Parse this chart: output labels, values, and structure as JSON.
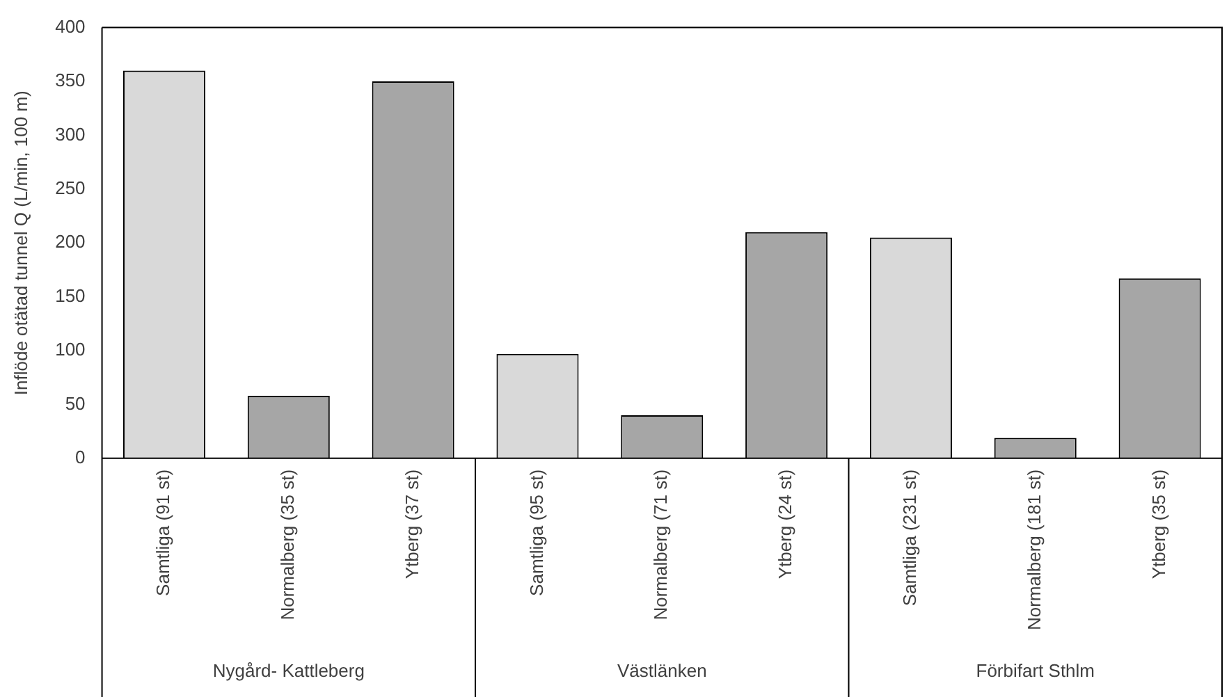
{
  "chart_data": {
    "type": "bar",
    "ylabel": "Inflöde otätad tunnel Q (L/min, 100 m)",
    "categories": [
      "Samtliga (91 st)",
      "Normalberg (35 st)",
      "Ytberg (37 st)",
      "Samtliga (95 st)",
      "Normalberg (71 st)",
      "Ytberg (24 st)",
      "Samtliga (231 st)",
      "Normalberg (181 st)",
      "Ytberg (35 st)"
    ],
    "values": [
      360,
      58,
      350,
      97,
      40,
      210,
      205,
      19,
      167
    ],
    "colors": [
      "#d9d9d9",
      "#a6a6a6",
      "#a6a6a6",
      "#d9d9d9",
      "#a6a6a6",
      "#a6a6a6",
      "#d9d9d9",
      "#a6a6a6",
      "#a6a6a6"
    ],
    "annotations": [
      "Nygård- Kattleberg",
      "Västlänken",
      "Förbifart Sthlm"
    ],
    "ylim": [
      0,
      400
    ],
    "yticks": [
      0,
      50,
      100,
      150,
      200,
      250,
      300,
      350,
      400
    ],
    "grid": false,
    "legend": false
  }
}
